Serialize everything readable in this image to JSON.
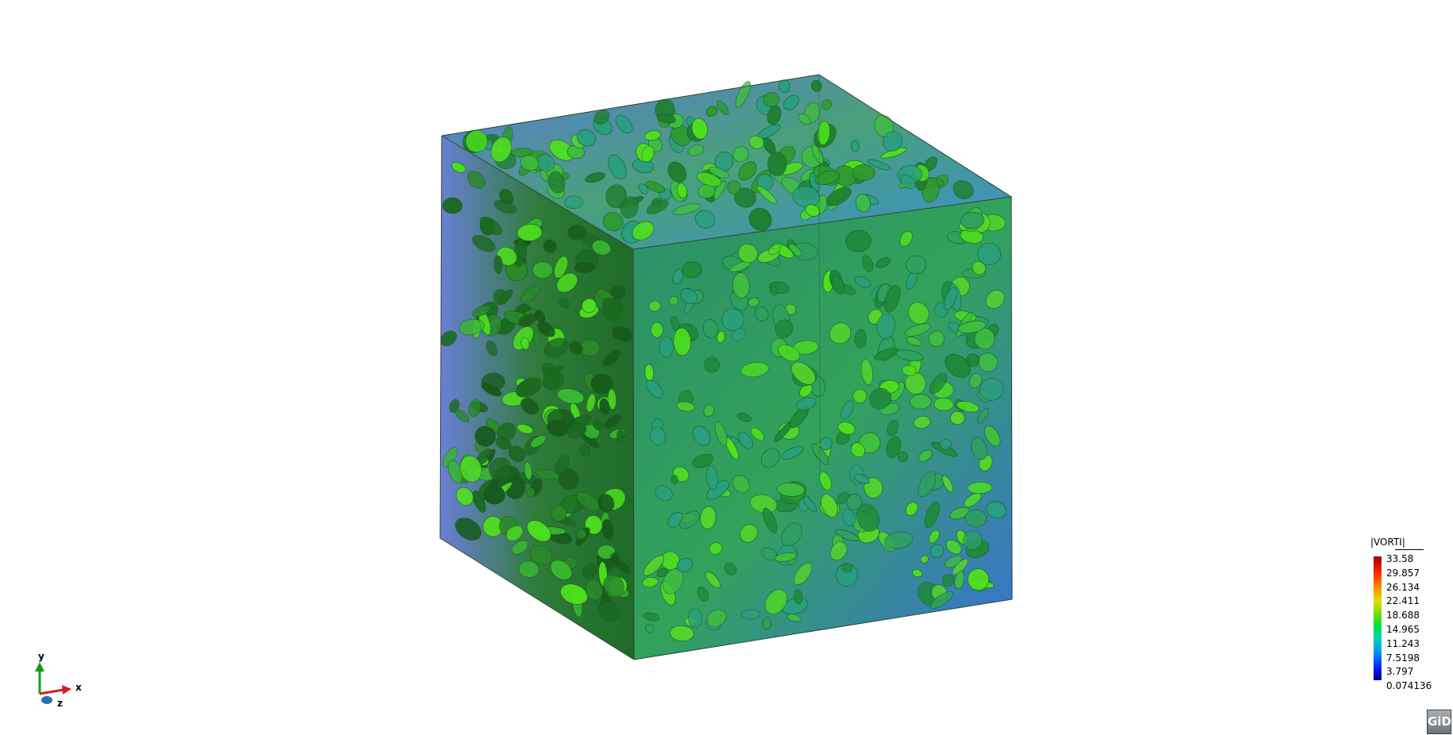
{
  "legend": {
    "title": "|VORTI|",
    "values": [
      "33.58",
      "29.857",
      "26.134",
      "22.411",
      "18.688",
      "14.965",
      "11.243",
      "7.5198",
      "3.797",
      "0.074136"
    ]
  },
  "axes": {
    "x_label": "x",
    "y_label": "y",
    "z_label": "z"
  },
  "badge": {
    "label": "GiD"
  },
  "colors": {
    "background": "#ffffff",
    "slice_blue": "#3f6fdc",
    "isosurface_green": "#1f9a2e",
    "isosurface_bright": "#4fe01e",
    "isosurface_teal": "#2a9f80"
  }
}
